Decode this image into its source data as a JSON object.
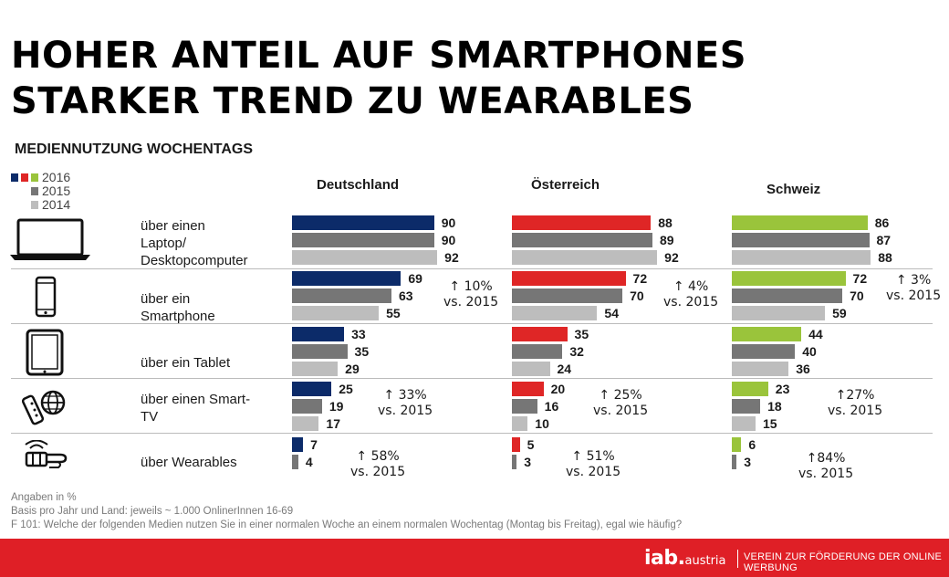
{
  "title_lines": [
    "HOHER ANTEIL AUF SMARTPHONES",
    "STARKER TREND ZU WEARABLES"
  ],
  "subtitle": "MEDIENNUTZUNG WOCHENTAGS",
  "legend": [
    "2016",
    "2015",
    "2014"
  ],
  "footnotes": [
    "Angaben in %",
    "Basis pro Jahr und Land:  jeweils ~ 1.000 OnlinerInnen 16-69",
    "F 101: Welche der folgenden Medien nutzen Sie in einer normalen Woche an einem normalen Wochentag (Montag bis Freitag), egal wie häufig?"
  ],
  "footer": {
    "logo_main": "iab.",
    "logo_sub": "austria",
    "tagline": "VEREIN ZUR FÖRDERUNG DER ONLINE WERBUNG"
  },
  "colors": {
    "de_2016": "#0c2b69",
    "at_2016": "#df2626",
    "ch_2016": "#9ac43b",
    "y2015": "#767676",
    "y2014": "#bdbdbd",
    "footer": "#df1f26"
  },
  "icons": [
    "laptop-icon",
    "smartphone-icon",
    "tablet-icon",
    "smart-tv-icon",
    "wearable-icon"
  ],
  "chart_data": {
    "type": "bar",
    "orientation": "horizontal",
    "unit": "%",
    "countries": [
      "Deutschland",
      "Österreich",
      "Schweiz"
    ],
    "years": [
      "2016",
      "2015",
      "2014"
    ],
    "categories": [
      "über einen Laptop/ Desktopcomputer",
      "über ein Smartphone",
      "über ein Tablet",
      "über einen Smart-TV",
      "über Wearables"
    ],
    "category_lines": [
      [
        "über einen",
        "Laptop/",
        "Desktopcomputer"
      ],
      [
        "über ein",
        "Smartphone"
      ],
      [
        "über ein Tablet"
      ],
      [
        "über einen Smart-",
        "TV"
      ],
      [
        "über Wearables"
      ]
    ],
    "values": {
      "Deutschland": [
        [
          90,
          90,
          92
        ],
        [
          69,
          63,
          55
        ],
        [
          33,
          35,
          29
        ],
        [
          25,
          19,
          17
        ],
        [
          7,
          4
        ]
      ],
      "Österreich": [
        [
          88,
          89,
          92
        ],
        [
          72,
          70,
          54
        ],
        [
          35,
          32,
          24
        ],
        [
          20,
          16,
          10
        ],
        [
          5,
          3
        ]
      ],
      "Schweiz": [
        [
          86,
          87,
          88
        ],
        [
          72,
          70,
          59
        ],
        [
          44,
          40,
          36
        ],
        [
          23,
          18,
          15
        ],
        [
          6,
          3
        ]
      ]
    },
    "annotations": {
      "Deutschland": [
        null,
        [
          "↑ 10%",
          "vs. 2015"
        ],
        null,
        [
          "↑ 33%",
          "vs. 2015"
        ],
        [
          "↑ 58%",
          "vs. 2015"
        ]
      ],
      "Österreich": [
        null,
        [
          "↑ 4%",
          "vs. 2015"
        ],
        null,
        [
          "↑ 25%",
          "vs. 2015"
        ],
        [
          "↑ 51%",
          "vs. 2015"
        ]
      ],
      "Schweiz": [
        null,
        [
          "↑ 3%",
          "vs. 2015"
        ],
        null,
        [
          "↑27%",
          "vs. 2015"
        ],
        [
          "↑84%",
          "vs. 2015"
        ]
      ]
    }
  }
}
